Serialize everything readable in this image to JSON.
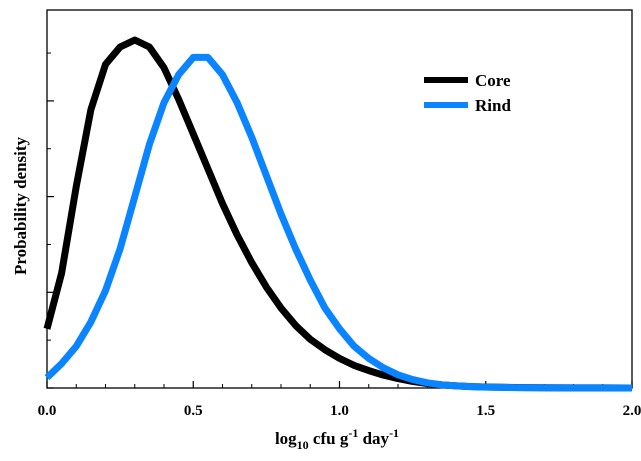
{
  "chart_data": {
    "type": "line",
    "title": "",
    "xlabel": {
      "base": "log",
      "sub1": "10",
      "mid": " cfu g",
      "sup1": "-1",
      "mid2": " day",
      "sup2": "-1"
    },
    "ylabel": "Probability density",
    "xlim": [
      0.0,
      2.0
    ],
    "ylim": [
      0.0,
      1.0
    ],
    "x_ticks": [
      0.0,
      0.5,
      1.0,
      1.5,
      2.0
    ],
    "x_tick_labels": [
      "0.0",
      "0.5",
      "1.0",
      "1.5",
      "2.0"
    ],
    "y_ticks": [
      0.0,
      0.275,
      0.55,
      0.825
    ],
    "y_tick_labels_shown": false,
    "legend_position": "top-right",
    "grid": false,
    "series": [
      {
        "name": "Core",
        "color": "#000000",
        "x": [
          0.0,
          0.05,
          0.1,
          0.15,
          0.2,
          0.25,
          0.3,
          0.35,
          0.4,
          0.45,
          0.5,
          0.55,
          0.6,
          0.65,
          0.7,
          0.75,
          0.8,
          0.85,
          0.9,
          0.95,
          1.0,
          1.05,
          1.1,
          1.15,
          1.2,
          1.25,
          1.3,
          1.35,
          1.4,
          1.45,
          1.5,
          1.6,
          1.7,
          1.8,
          1.9,
          2.0
        ],
        "y": [
          0.17,
          0.33,
          0.58,
          0.8,
          0.93,
          0.98,
          1.0,
          0.98,
          0.92,
          0.83,
          0.73,
          0.63,
          0.53,
          0.44,
          0.36,
          0.29,
          0.23,
          0.18,
          0.14,
          0.11,
          0.085,
          0.065,
          0.05,
          0.037,
          0.027,
          0.019,
          0.013,
          0.009,
          0.006,
          0.004,
          0.003,
          0.0015,
          0.0008,
          0.0004,
          0.0002,
          0.0001
        ]
      },
      {
        "name": "Rind",
        "color": "#0a84ff",
        "x": [
          0.0,
          0.05,
          0.1,
          0.15,
          0.2,
          0.25,
          0.3,
          0.35,
          0.4,
          0.45,
          0.5,
          0.55,
          0.6,
          0.65,
          0.7,
          0.75,
          0.8,
          0.85,
          0.9,
          0.95,
          1.0,
          1.05,
          1.1,
          1.15,
          1.2,
          1.25,
          1.3,
          1.35,
          1.4,
          1.45,
          1.5,
          1.6,
          1.7,
          1.8,
          1.9,
          2.0
        ],
        "y": [
          0.03,
          0.07,
          0.12,
          0.19,
          0.28,
          0.4,
          0.55,
          0.7,
          0.82,
          0.9,
          0.95,
          0.95,
          0.9,
          0.82,
          0.72,
          0.61,
          0.5,
          0.4,
          0.31,
          0.23,
          0.17,
          0.12,
          0.085,
          0.058,
          0.038,
          0.024,
          0.015,
          0.009,
          0.006,
          0.004,
          0.0025,
          0.0012,
          0.0006,
          0.0003,
          0.0002,
          0.0001
        ]
      }
    ]
  }
}
